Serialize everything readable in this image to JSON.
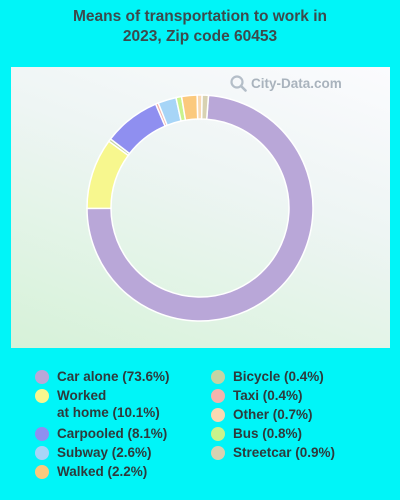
{
  "title_lines": [
    "Means of transportation to work in",
    "2023, Zip code 60453"
  ],
  "watermark": "City-Data.com",
  "chart_data": {
    "type": "pie",
    "donut": true,
    "title": "Means of transportation to work in 2023, Zip code 60453",
    "slices": [
      {
        "label": "Car alone",
        "value": 73.6,
        "legend": "Car alone (73.6%)",
        "color": "#b9a7d8"
      },
      {
        "label": "Worked at home",
        "value": 10.1,
        "legend": "Worked\nat home (10.1%)",
        "color": "#f7f78e"
      },
      {
        "label": "Bicycle",
        "value": 0.4,
        "legend": "Bicycle (0.4%)",
        "color": "#c5d4a4"
      },
      {
        "label": "Carpooled",
        "value": 8.1,
        "legend": "Carpooled (8.1%)",
        "color": "#8f8ff0"
      },
      {
        "label": "Taxi",
        "value": 0.4,
        "legend": "Taxi (0.4%)",
        "color": "#f4b4ad"
      },
      {
        "label": "Subway",
        "value": 2.6,
        "legend": "Subway (2.6%)",
        "color": "#a7d5f7"
      },
      {
        "label": "Bus",
        "value": 0.8,
        "legend": "Bus (0.8%)",
        "color": "#c9f38c"
      },
      {
        "label": "Walked",
        "value": 2.2,
        "legend": "Walked (2.2%)",
        "color": "#fbc97d"
      },
      {
        "label": "Other",
        "value": 0.7,
        "legend": "Other (0.7%)",
        "color": "#f9d9b2"
      },
      {
        "label": "Streetcar",
        "value": 0.9,
        "legend": "Streetcar (0.9%)",
        "color": "#d8d2b2"
      }
    ],
    "legend_columns": [
      [
        "Car alone",
        "Worked at home",
        "Carpooled",
        "Subway",
        "Walked"
      ],
      [
        "Bicycle",
        "Taxi",
        "Other",
        "Bus",
        "Streetcar"
      ]
    ],
    "legend_placement": "bottom"
  }
}
